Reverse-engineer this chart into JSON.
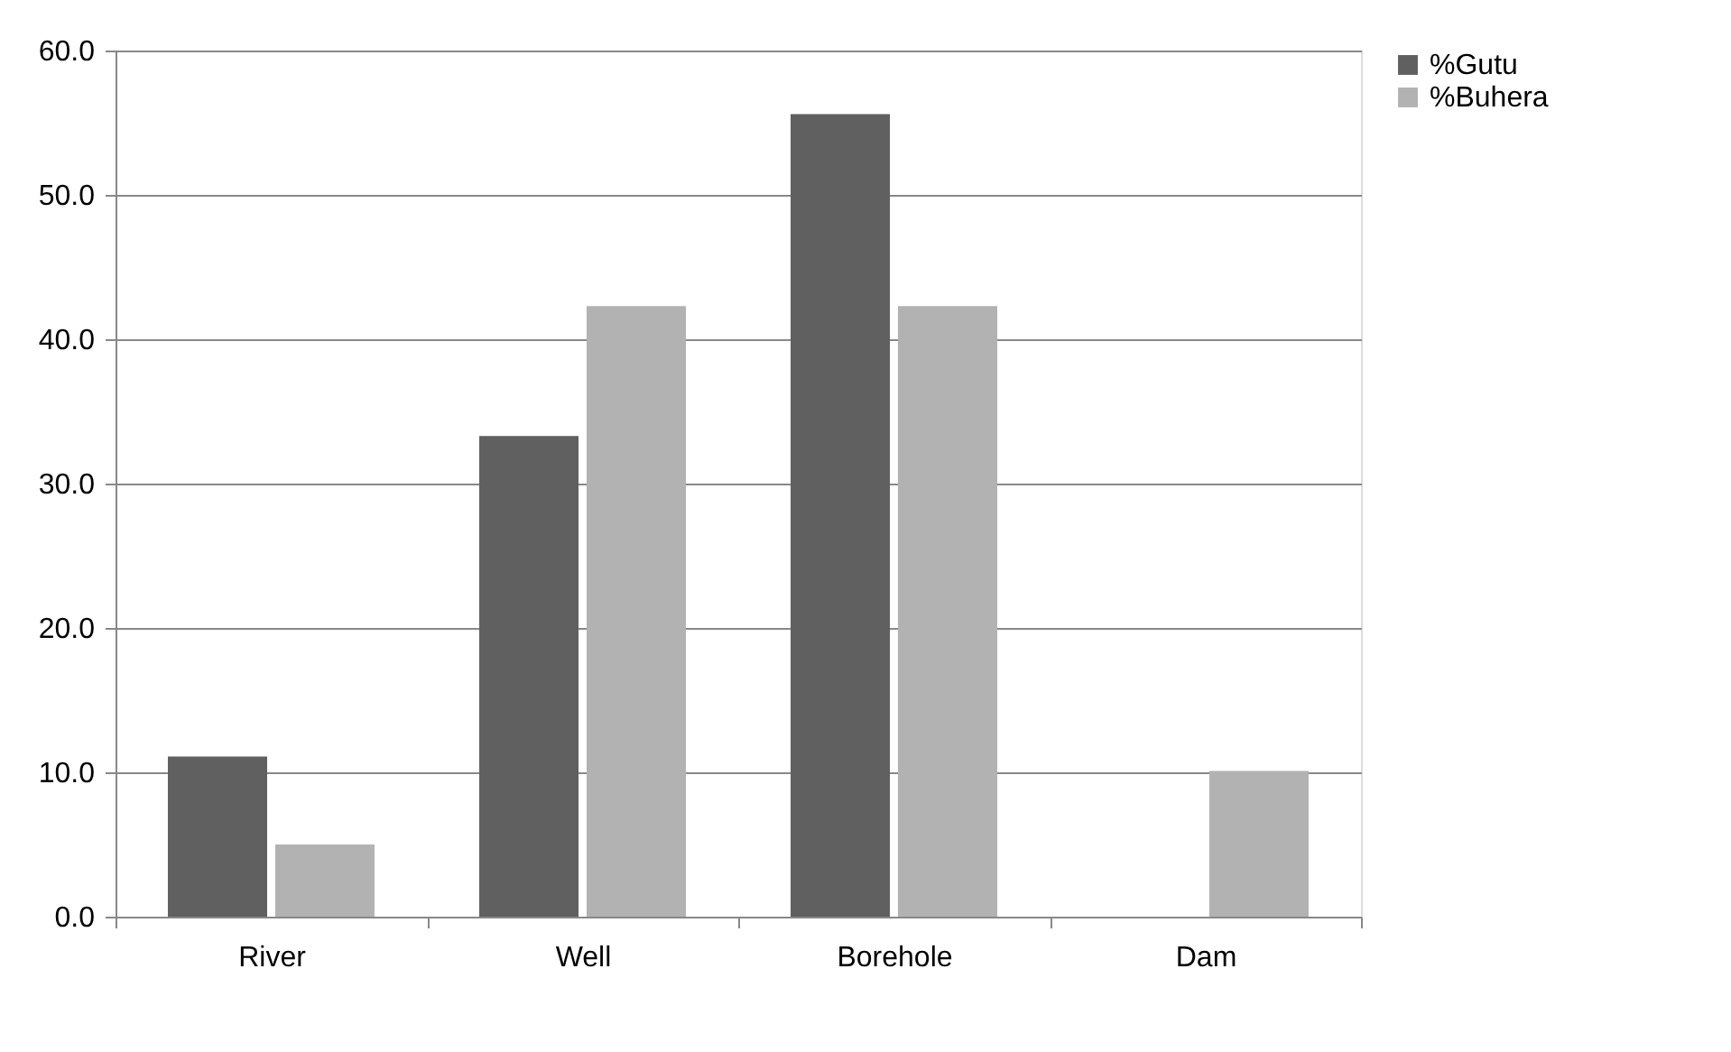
{
  "chart_data": {
    "type": "bar",
    "categories": [
      "River",
      "Well",
      "Borehole",
      "Dam"
    ],
    "series": [
      {
        "name": "%Gutu",
        "color": "#606060",
        "values": [
          11.1,
          33.3,
          55.6,
          0
        ]
      },
      {
        "name": "%Buhera",
        "color": "#b2b2b2",
        "values": [
          5.0,
          42.3,
          42.3,
          10.1
        ]
      }
    ],
    "ylim": [
      0,
      60
    ],
    "yticks": [
      {
        "value": 0,
        "label": "0.0"
      },
      {
        "value": 10,
        "label": "10.0"
      },
      {
        "value": 20,
        "label": "20.0"
      },
      {
        "value": 30,
        "label": "30.0"
      },
      {
        "value": 40,
        "label": "40.0"
      },
      {
        "value": 50,
        "label": "50.0"
      },
      {
        "value": 60,
        "label": "60.0"
      }
    ],
    "grid": "y",
    "legend": "right"
  }
}
